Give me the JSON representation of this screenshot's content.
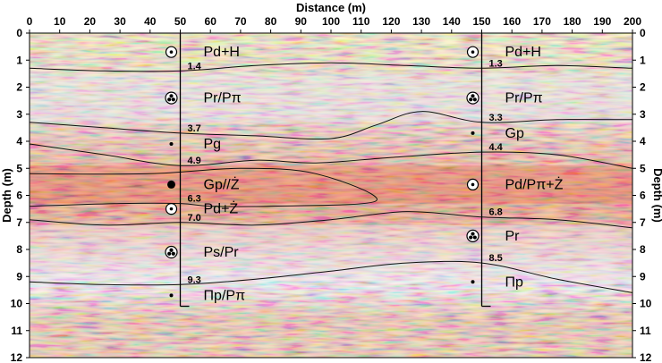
{
  "chart_data": {
    "type": "diagram",
    "xlabel": "Distance (m)",
    "ylabel_left": "Depth (m)",
    "ylabel_right": "Depth (m)",
    "xlim": [
      0,
      200
    ],
    "ylim": [
      0,
      12
    ],
    "x_ticks": [
      "0",
      "10",
      "20",
      "30",
      "40",
      "50",
      "60",
      "70",
      "80",
      "90",
      "100",
      "110",
      "120",
      "130",
      "140",
      "150",
      "160",
      "170",
      "180",
      "190",
      "200"
    ],
    "y_ticks": [
      "0",
      "1",
      "2",
      "3",
      "4",
      "5",
      "6",
      "7",
      "8",
      "9",
      "10",
      "11",
      "12"
    ],
    "boreholes": [
      {
        "x": 50,
        "bottom": 10.1,
        "layers": [
          {
            "label": "Pd+H",
            "symbol": "circle-dot",
            "y": 0.7
          },
          {
            "label": "Pr/Pπ",
            "symbol": "clover",
            "y": 2.4
          },
          {
            "label": "Pg",
            "symbol": "small-dot",
            "y": 4.1
          },
          {
            "label": "Gp//Ż",
            "symbol": "large-dot",
            "y": 5.6
          },
          {
            "label": "Pd+Ż",
            "symbol": "circle-dot",
            "y": 6.5
          },
          {
            "label": "Ps/Pr",
            "symbol": "clover",
            "y": 8.1
          },
          {
            "label": "Πp/Pπ",
            "symbol": "small-dot",
            "y": 9.7
          }
        ],
        "depths": [
          "1.4",
          "3.7",
          "4.9",
          "6.3",
          "7.0",
          "9.3"
        ],
        "depth_values": [
          1.4,
          3.7,
          4.9,
          6.3,
          7.0,
          9.3
        ]
      },
      {
        "x": 150,
        "bottom": 10.1,
        "layers": [
          {
            "label": "Pd+H",
            "symbol": "circle-dot",
            "y": 0.7
          },
          {
            "label": "Pr/Pπ",
            "symbol": "clover",
            "y": 2.4
          },
          {
            "label": "Gp",
            "symbol": "small-dot",
            "y": 3.7
          },
          {
            "label": "Pd/Pπ+Ż",
            "symbol": "circle-dot",
            "y": 5.6
          },
          {
            "label": "Pr",
            "symbol": "clover",
            "y": 7.5
          },
          {
            "label": "Πp",
            "symbol": "small-dot",
            "y": 9.2
          }
        ],
        "depths": [
          "1.3",
          "3.3",
          "4.4",
          "6.8",
          "8.5"
        ],
        "depth_values": [
          1.3,
          3.3,
          4.4,
          6.8,
          8.5
        ]
      }
    ],
    "boundaries": [
      [
        [
          0,
          1.3
        ],
        [
          25,
          1.4
        ],
        [
          50,
          1.4
        ],
        [
          75,
          1.2
        ],
        [
          100,
          1.1
        ],
        [
          125,
          1.2
        ],
        [
          150,
          1.3
        ],
        [
          175,
          1.2
        ],
        [
          200,
          1.3
        ]
      ],
      [
        [
          0,
          3.3
        ],
        [
          25,
          3.5
        ],
        [
          50,
          3.7
        ],
        [
          75,
          3.8
        ],
        [
          100,
          3.9
        ],
        [
          115,
          3.4
        ],
        [
          130,
          2.9
        ],
        [
          150,
          3.3
        ],
        [
          175,
          3.2
        ],
        [
          200,
          3.2
        ]
      ],
      [
        [
          0,
          4.1
        ],
        [
          25,
          4.5
        ],
        [
          50,
          4.9
        ],
        [
          75,
          4.7
        ],
        [
          95,
          4.8
        ],
        [
          120,
          4.6
        ],
        [
          150,
          4.4
        ],
        [
          175,
          4.5
        ],
        [
          200,
          5.0
        ]
      ],
      [
        [
          0,
          5.2
        ],
        [
          40,
          5.2
        ],
        [
          70,
          5.0
        ],
        [
          95,
          5.2
        ],
        [
          115,
          6.2
        ],
        [
          80,
          6.4
        ],
        [
          60,
          6.4
        ],
        [
          50,
          6.3
        ],
        [
          30,
          6.3
        ],
        [
          0,
          6.4
        ]
      ],
      [
        [
          0,
          6.9
        ],
        [
          25,
          7.1
        ],
        [
          50,
          7.0
        ],
        [
          75,
          7.1
        ],
        [
          100,
          6.9
        ],
        [
          125,
          6.6
        ],
        [
          150,
          6.8
        ],
        [
          175,
          6.9
        ],
        [
          200,
          7.2
        ]
      ],
      [
        [
          0,
          9.2
        ],
        [
          25,
          9.3
        ],
        [
          50,
          9.3
        ],
        [
          75,
          9.1
        ],
        [
          100,
          8.8
        ],
        [
          125,
          8.5
        ],
        [
          150,
          8.5
        ],
        [
          175,
          9.1
        ],
        [
          200,
          9.6
        ]
      ]
    ]
  }
}
